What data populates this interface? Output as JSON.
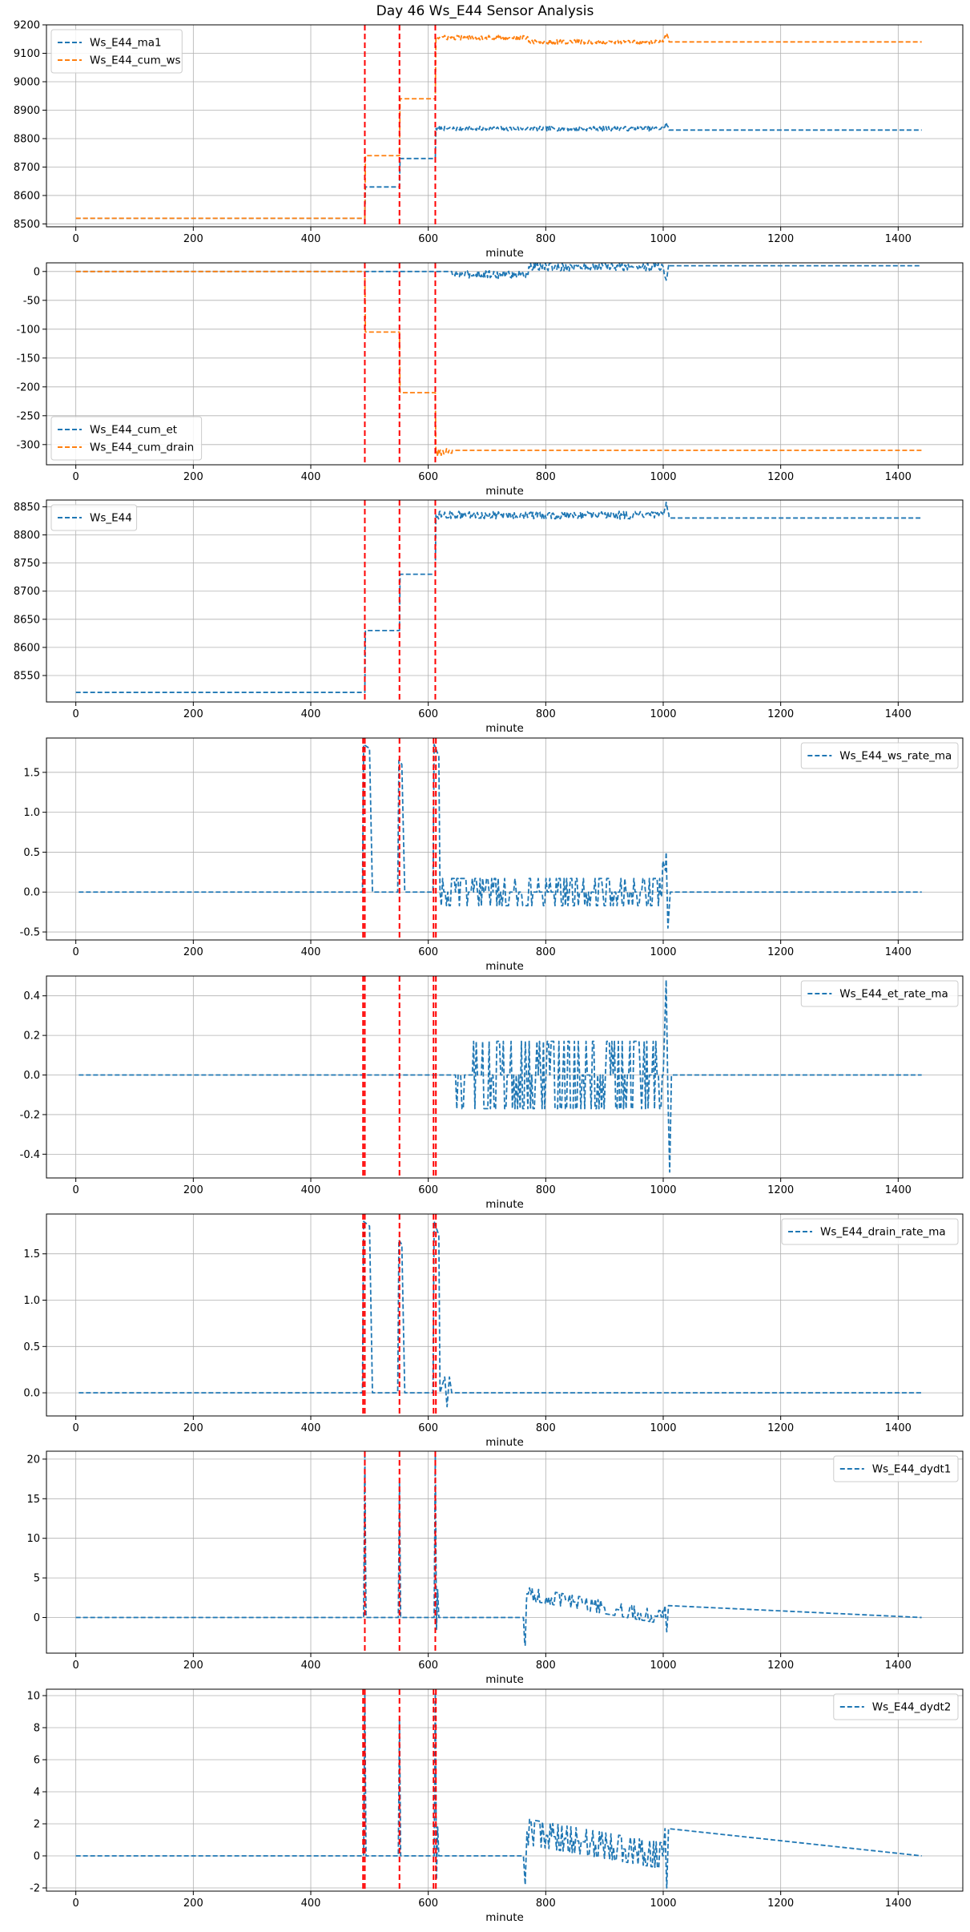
{
  "title": "Day 46 Ws_E44 Sensor Analysis",
  "colors": {
    "blue": "#1f77b4",
    "orange": "#ff7f0e",
    "vline": "#ff0000",
    "grid": "#b0b0b0"
  },
  "chart_data": [
    {
      "type": "line",
      "xlabel": "minute",
      "xlim": [
        -50,
        1510
      ],
      "ylim": [
        8490,
        9200
      ],
      "xticks": [
        0,
        200,
        400,
        600,
        800,
        1000,
        1200,
        1400
      ],
      "yticks": [
        8500,
        8600,
        8700,
        8800,
        8900,
        9000,
        9100,
        9200
      ],
      "legend": "upper left",
      "grid": true,
      "vlines": [
        492,
        551,
        612
      ],
      "series": [
        {
          "name": "Ws_E44_ma1",
          "color": "#1f77b4",
          "style": "dashed",
          "x": [
            0,
            492,
            493,
            551,
            552,
            612,
            613,
            1000,
            1005,
            1010,
            1440
          ],
          "y": [
            8520,
            8520,
            8630,
            8630,
            8730,
            8730,
            8835,
            8835,
            8855,
            8830,
            8830
          ],
          "noise": {
            "from": 613,
            "to": 1010,
            "amp": 8
          }
        },
        {
          "name": "Ws_E44_cum_ws",
          "color": "#ff7f0e",
          "style": "dashed",
          "x": [
            0,
            492,
            493,
            551,
            552,
            612,
            613,
            770,
            771,
            1000,
            1005,
            1010,
            1440
          ],
          "y": [
            8520,
            8520,
            8740,
            8740,
            8940,
            8940,
            9155,
            9155,
            9140,
            9140,
            9170,
            9140,
            9140
          ],
          "noise": {
            "from": 613,
            "to": 1010,
            "amp": 8
          }
        }
      ]
    },
    {
      "type": "line",
      "xlabel": "minute",
      "xlim": [
        -50,
        1510
      ],
      "ylim": [
        -335,
        15
      ],
      "xticks": [
        0,
        200,
        400,
        600,
        800,
        1000,
        1200,
        1400
      ],
      "yticks": [
        0,
        -50,
        -100,
        -150,
        -200,
        -250,
        -300
      ],
      "legend": "lower left",
      "grid": true,
      "vlines": [
        492,
        551,
        612
      ],
      "series": [
        {
          "name": "Ws_E44_cum_et",
          "color": "#1f77b4",
          "style": "dashed",
          "x": [
            0,
            640,
            641,
            770,
            771,
            1000,
            1005,
            1010,
            1440
          ],
          "y": [
            0,
            0,
            -5,
            -5,
            8,
            8,
            -15,
            10,
            10
          ],
          "noise": {
            "from": 641,
            "to": 1010,
            "amp": 7
          }
        },
        {
          "name": "Ws_E44_cum_drain",
          "color": "#ff7f0e",
          "style": "dashed",
          "x": [
            0,
            492,
            493,
            551,
            552,
            612,
            613,
            640,
            641,
            1440
          ],
          "y": [
            0,
            0,
            -105,
            -105,
            -210,
            -210,
            -315,
            -315,
            -310,
            -310
          ],
          "noise": {
            "from": 613,
            "to": 640,
            "amp": 8
          }
        }
      ]
    },
    {
      "type": "line",
      "xlabel": "minute",
      "xlim": [
        -50,
        1510
      ],
      "ylim": [
        8503,
        8862
      ],
      "xticks": [
        0,
        200,
        400,
        600,
        800,
        1000,
        1200,
        1400
      ],
      "yticks": [
        8550,
        8600,
        8650,
        8700,
        8750,
        8800,
        8850
      ],
      "legend": "upper left",
      "grid": true,
      "vlines": [
        492,
        551,
        612
      ],
      "series": [
        {
          "name": "Ws_E44",
          "color": "#1f77b4",
          "style": "dashed",
          "x": [
            0,
            492,
            493,
            551,
            552,
            612,
            613,
            1000,
            1005,
            1010,
            1440
          ],
          "y": [
            8520,
            8520,
            8630,
            8630,
            8730,
            8730,
            8835,
            8835,
            8858,
            8830,
            8830
          ],
          "noise": {
            "from": 613,
            "to": 1010,
            "amp": 7
          }
        }
      ]
    },
    {
      "type": "line",
      "xlabel": "minute",
      "xlim": [
        -50,
        1510
      ],
      "ylim": [
        -0.6,
        1.93
      ],
      "xticks": [
        0,
        200,
        400,
        600,
        800,
        1000,
        1200,
        1400
      ],
      "yticks": [
        -0.5,
        0.0,
        0.5,
        1.0,
        1.5
      ],
      "legend": "upper right",
      "grid": true,
      "vlines": [
        489,
        492,
        551,
        609,
        613
      ],
      "series": [
        {
          "name": "Ws_E44_ws_rate_ma",
          "color": "#1f77b4",
          "style": "dashed",
          "x": [
            5,
            488,
            490,
            500,
            505,
            548,
            550,
            555,
            560,
            608,
            610,
            618,
            620,
            995,
            1005,
            1008,
            1012,
            1015,
            1440
          ],
          "y": [
            0,
            0,
            1.85,
            1.8,
            0,
            0,
            1.65,
            1.6,
            0,
            0,
            1.85,
            1.7,
            0,
            0,
            0.5,
            -0.45,
            0,
            0,
            0
          ],
          "noise": {
            "from": 620,
            "to": 1005,
            "amp": 0.17,
            "square": true
          }
        }
      ]
    },
    {
      "type": "line",
      "xlabel": "minute",
      "xlim": [
        -50,
        1510
      ],
      "ylim": [
        -0.52,
        0.5
      ],
      "xticks": [
        0,
        200,
        400,
        600,
        800,
        1000,
        1200,
        1400
      ],
      "yticks": [
        -0.4,
        -0.2,
        0.0,
        0.2,
        0.4
      ],
      "legend": "upper right",
      "grid": true,
      "vlines": [
        489,
        492,
        551,
        609,
        613
      ],
      "series": [
        {
          "name": "Ws_E44_et_rate_ma",
          "color": "#1f77b4",
          "style": "dashed",
          "x": [
            5,
            640,
            642,
            1000,
            1005,
            1008,
            1011,
            1014,
            1440
          ],
          "y": [
            0,
            0,
            0,
            0,
            0.48,
            -0.1,
            -0.49,
            0,
            0
          ],
          "noise": {
            "from": 642,
            "to": 1002,
            "amp": 0.17,
            "square": true
          }
        }
      ]
    },
    {
      "type": "line",
      "xlabel": "minute",
      "xlim": [
        -50,
        1510
      ],
      "ylim": [
        -0.25,
        1.93
      ],
      "xticks": [
        0,
        200,
        400,
        600,
        800,
        1000,
        1200,
        1400
      ],
      "yticks": [
        0.0,
        0.5,
        1.0,
        1.5
      ],
      "legend": "upper right",
      "grid": true,
      "vlines": [
        489,
        492,
        551,
        609,
        613
      ],
      "series": [
        {
          "name": "Ws_E44_drain_rate_ma",
          "color": "#1f77b4",
          "style": "dashed",
          "x": [
            5,
            488,
            490,
            500,
            505,
            548,
            550,
            555,
            560,
            608,
            610,
            618,
            620,
            628,
            632,
            636,
            640,
            1440
          ],
          "y": [
            0,
            0,
            1.85,
            1.8,
            0,
            0,
            1.65,
            1.6,
            0,
            0,
            1.85,
            1.7,
            0,
            0.17,
            -0.15,
            0.17,
            0,
            0
          ]
        }
      ]
    },
    {
      "type": "line",
      "xlabel": "minute",
      "xlim": [
        -50,
        1510
      ],
      "ylim": [
        -4.5,
        21
      ],
      "xticks": [
        0,
        200,
        400,
        600,
        800,
        1000,
        1200,
        1400
      ],
      "yticks": [
        0,
        5,
        10,
        15,
        20
      ],
      "legend": "upper right",
      "grid": true,
      "vlines": [
        492,
        551,
        612
      ],
      "series": [
        {
          "name": "Ws_E44_dydt1",
          "color": "#1f77b4",
          "style": "dashed",
          "x": [
            0,
            490,
            492,
            494,
            549,
            551,
            553,
            610,
            612,
            614,
            616,
            618,
            762,
            765,
            768,
            1000,
            1003,
            1006,
            1009,
            1440
          ],
          "y": [
            0,
            0,
            20.5,
            0,
            0,
            17,
            0,
            0,
            20.5,
            -1.5,
            3.5,
            0,
            0,
            -3.5,
            3,
            0,
            1.5,
            -1.8,
            1.5,
            0
          ],
          "noise": {
            "from": 620,
            "to": 1000,
            "amp": 0.8,
            "square": true
          }
        }
      ]
    },
    {
      "type": "line",
      "xlabel": "minute",
      "xlim": [
        -50,
        1510
      ],
      "ylim": [
        -2.2,
        10.4
      ],
      "xticks": [
        0,
        200,
        400,
        600,
        800,
        1000,
        1200,
        1400
      ],
      "yticks": [
        -2,
        0,
        2,
        4,
        6,
        8,
        10
      ],
      "legend": "upper right",
      "grid": true,
      "vlines": [
        489,
        492,
        551,
        609,
        613
      ],
      "series": [
        {
          "name": "Ws_E44_dydt2",
          "color": "#1f77b4",
          "style": "dashed",
          "x": [
            0,
            490,
            492,
            494,
            549,
            551,
            553,
            610,
            612,
            614,
            616,
            618,
            762,
            765,
            768,
            1000,
            1003,
            1006,
            1009,
            1440
          ],
          "y": [
            0,
            0,
            10.2,
            0,
            0,
            8.5,
            0,
            0,
            10.2,
            -1.5,
            1.8,
            0,
            0,
            -1.8,
            1.5,
            0,
            1.7,
            -2,
            1.7,
            0
          ],
          "noise": {
            "from": 620,
            "to": 1000,
            "amp": 0.8,
            "square": true
          }
        }
      ]
    }
  ]
}
